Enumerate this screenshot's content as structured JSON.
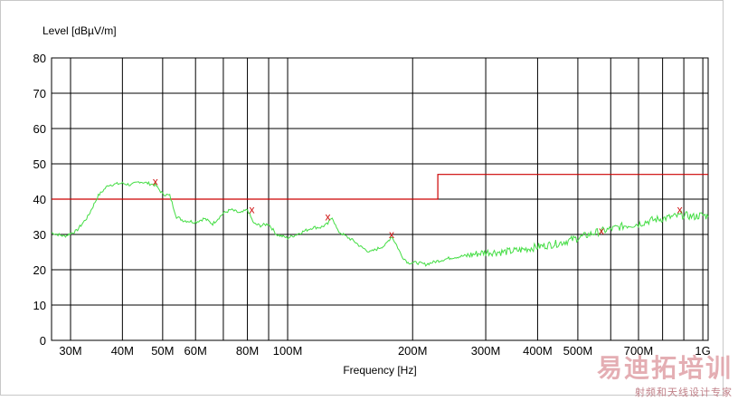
{
  "chart_data": {
    "type": "line",
    "title": "",
    "ylabel": "Level [dBµV/m]",
    "xlabel": "Frequency [Hz]",
    "xscale": "log",
    "ylim": [
      0,
      80
    ],
    "xlim_hz": [
      27000000,
      1030000000
    ],
    "y_ticks": [
      0,
      10,
      20,
      30,
      40,
      50,
      60,
      70,
      80
    ],
    "x_ticks": [
      {
        "label": "30M",
        "hz": 30000000
      },
      {
        "label": "40M",
        "hz": 40000000
      },
      {
        "label": "50M",
        "hz": 50000000
      },
      {
        "label": "60M",
        "hz": 60000000
      },
      {
        "label": "80M",
        "hz": 80000000
      },
      {
        "label": "100M",
        "hz": 100000000
      },
      {
        "label": "200M",
        "hz": 200000000
      },
      {
        "label": "300M",
        "hz": 300000000
      },
      {
        "label": "400M",
        "hz": 400000000
      },
      {
        "label": "500M",
        "hz": 500000000
      },
      {
        "label": "700M",
        "hz": 700000000
      },
      {
        "label": "1G",
        "hz": 1000000000
      }
    ],
    "minor_grid_hz": [
      70000000,
      90000000,
      600000000,
      800000000,
      900000000
    ],
    "grid": true,
    "series": [
      {
        "kind": "limit",
        "color": "#cc0000",
        "points": [
          [
            27000000,
            40
          ],
          [
            230000000,
            40
          ],
          [
            230000000,
            47
          ],
          [
            1030000000,
            47
          ]
        ]
      },
      {
        "kind": "measurement",
        "color": "#44dd44",
        "points": [
          [
            27000000,
            30.5
          ],
          [
            29000000,
            29.5
          ],
          [
            31000000,
            31
          ],
          [
            33000000,
            35
          ],
          [
            35000000,
            41
          ],
          [
            37000000,
            44
          ],
          [
            40000000,
            44.5
          ],
          [
            42000000,
            44
          ],
          [
            44000000,
            45
          ],
          [
            46000000,
            44.5
          ],
          [
            48000000,
            44
          ],
          [
            50000000,
            41.5
          ],
          [
            52000000,
            41
          ],
          [
            54000000,
            35
          ],
          [
            56000000,
            34
          ],
          [
            60000000,
            33.5
          ],
          [
            63000000,
            34.5
          ],
          [
            66000000,
            33
          ],
          [
            70000000,
            36
          ],
          [
            73000000,
            37
          ],
          [
            77000000,
            36
          ],
          [
            80000000,
            37
          ],
          [
            83000000,
            33
          ],
          [
            86000000,
            32.5
          ],
          [
            90000000,
            33
          ],
          [
            94000000,
            30
          ],
          [
            100000000,
            29
          ],
          [
            105000000,
            30
          ],
          [
            110000000,
            31
          ],
          [
            115000000,
            32
          ],
          [
            120000000,
            32
          ],
          [
            125000000,
            33
          ],
          [
            128000000,
            35
          ],
          [
            132000000,
            31
          ],
          [
            138000000,
            29.5
          ],
          [
            145000000,
            28
          ],
          [
            150000000,
            26.5
          ],
          [
            158000000,
            25
          ],
          [
            165000000,
            26
          ],
          [
            172000000,
            27
          ],
          [
            178000000,
            29.5
          ],
          [
            183000000,
            27
          ],
          [
            188000000,
            24
          ],
          [
            195000000,
            22
          ],
          [
            205000000,
            22
          ],
          [
            215000000,
            21.5
          ],
          [
            230000000,
            22.5
          ],
          [
            250000000,
            23.5
          ],
          [
            270000000,
            24
          ],
          [
            300000000,
            25
          ],
          [
            330000000,
            25
          ],
          [
            360000000,
            25.5
          ],
          [
            400000000,
            26.5
          ],
          [
            450000000,
            27.5
          ],
          [
            500000000,
            29
          ],
          [
            550000000,
            30.5
          ],
          [
            600000000,
            31.5
          ],
          [
            650000000,
            32.5
          ],
          [
            700000000,
            33
          ],
          [
            750000000,
            34
          ],
          [
            800000000,
            34.5
          ],
          [
            850000000,
            35
          ],
          [
            900000000,
            35.5
          ],
          [
            950000000,
            35
          ],
          [
            1000000000,
            35.5
          ],
          [
            1030000000,
            35
          ]
        ]
      }
    ],
    "markers": [
      {
        "symbol": "x",
        "hz": 48000000,
        "db": 45
      },
      {
        "symbol": "x",
        "hz": 82000000,
        "db": 37
      },
      {
        "symbol": "x",
        "hz": 125000000,
        "db": 35
      },
      {
        "symbol": "x",
        "hz": 178000000,
        "db": 30
      },
      {
        "symbol": "x",
        "hz": 570000000,
        "db": 31
      },
      {
        "symbol": "x",
        "hz": 880000000,
        "db": 37
      }
    ]
  },
  "watermark": {
    "main": "易迪拓培训",
    "sub": "射频和天线设计专家"
  }
}
